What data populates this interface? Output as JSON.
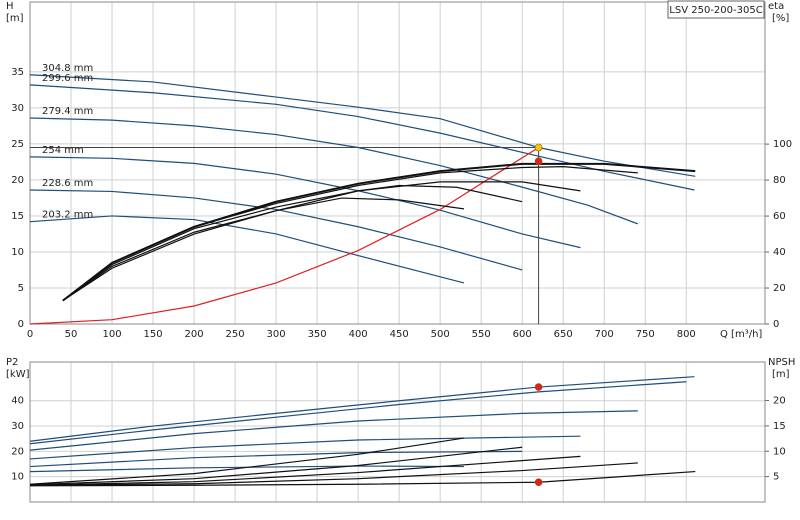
{
  "chart_data": [
    {
      "type": "line",
      "ylabel": "H",
      "yunit": "[m]",
      "y2label": "eta",
      "y2unit": "[%]",
      "xlabel": "Q [m³/h]",
      "annotation": "LSV 250-200-305C",
      "xlim": [
        0,
        896
      ],
      "xticks": [
        0,
        50,
        100,
        150,
        200,
        250,
        300,
        350,
        400,
        450,
        500,
        550,
        600,
        650,
        700,
        750,
        800
      ],
      "ylim": [
        0,
        44.7
      ],
      "yticks": [
        0,
        5,
        10,
        15,
        20,
        25,
        30,
        35
      ],
      "y2lim": [
        0,
        179
      ],
      "y2ticks": [
        0,
        20,
        40,
        60,
        80,
        100
      ],
      "grid": true,
      "series": [
        {
          "name": "304.8 mm",
          "color": "#1f4e79",
          "x": [
            0,
            150,
            300,
            400,
            500,
            620,
            700,
            811
          ],
          "values": [
            34.6,
            33.6,
            31.5,
            30.1,
            28.5,
            24.5,
            22.6,
            20.5
          ]
        },
        {
          "name": "299.6 mm",
          "color": "#1f4e79",
          "x": [
            0,
            150,
            300,
            400,
            500,
            620,
            700,
            810
          ],
          "values": [
            33.2,
            32.1,
            30.5,
            28.8,
            26.5,
            23.3,
            21.2,
            18.6
          ]
        },
        {
          "name": "279.4 mm",
          "color": "#1f4e79",
          "x": [
            0,
            100,
            200,
            300,
            400,
            500,
            600,
            680,
            741
          ],
          "values": [
            28.6,
            28.3,
            27.5,
            26.3,
            24.5,
            22.0,
            19.0,
            16.5,
            13.9
          ]
        },
        {
          "name": "254 mm",
          "color": "#1f4e79",
          "x": [
            0,
            100,
            200,
            300,
            400,
            500,
            600,
            671
          ],
          "values": [
            23.2,
            23.0,
            22.3,
            20.8,
            18.5,
            15.8,
            12.5,
            10.6
          ]
        },
        {
          "name": "228.6 mm",
          "color": "#1f4e79",
          "x": [
            0,
            100,
            200,
            300,
            400,
            500,
            600
          ],
          "values": [
            18.6,
            18.4,
            17.5,
            15.9,
            13.5,
            10.7,
            7.5
          ]
        },
        {
          "name": "203.2 mm",
          "color": "#1f4e79",
          "x": [
            0,
            100,
            200,
            300,
            400,
            529
          ],
          "values": [
            14.2,
            15.0,
            14.5,
            12.5,
            9.5,
            5.7
          ]
        },
        {
          "color": "#e02020",
          "x": [
            0,
            100,
            200,
            300,
            400,
            500,
            620
          ],
          "values": [
            0,
            0.6,
            2.5,
            5.7,
            10.2,
            15.9,
            24.5
          ]
        },
        {
          "color": "#111111",
          "axis": "y2",
          "x": [
            40,
            100,
            200,
            300,
            400,
            500,
            600,
            700,
            811
          ],
          "values": [
            13,
            34,
            54,
            68,
            78,
            85,
            89,
            89,
            85
          ]
        },
        {
          "color": "#111111",
          "axis": "y2",
          "x": [
            40,
            100,
            200,
            300,
            400,
            500,
            600,
            650,
            741
          ],
          "values": [
            13,
            34,
            54,
            67,
            77,
            84,
            87,
            87.5,
            84
          ]
        },
        {
          "color": "#111111",
          "axis": "y2",
          "x": [
            40,
            100,
            200,
            300,
            400,
            500,
            600,
            671
          ],
          "values": [
            13,
            33,
            53,
            65,
            74,
            79,
            79,
            74
          ]
        },
        {
          "color": "#111111",
          "axis": "y2",
          "x": [
            40,
            100,
            200,
            300,
            400,
            450,
            520,
            600
          ],
          "values": [
            13,
            32,
            51,
            63,
            74,
            77,
            76,
            68
          ]
        },
        {
          "color": "#111111",
          "axis": "y2",
          "x": [
            40,
            100,
            200,
            300,
            380,
            450,
            529
          ],
          "values": [
            13,
            31,
            50,
            63,
            70,
            69,
            64
          ]
        }
      ],
      "points": [
        {
          "x": 620,
          "y": 24.5,
          "color": "#f5c518"
        },
        {
          "x": 620,
          "y": 90.5,
          "axis": "y2",
          "color": "#e02020"
        }
      ]
    },
    {
      "type": "line",
      "ylabel": "P2",
      "yunit": "[kW]",
      "y2label": "NPSH",
      "y2unit": "[m]",
      "xlim": [
        0,
        896
      ],
      "xticks": [
        0,
        50,
        100,
        150,
        200,
        250,
        300,
        350,
        400,
        450,
        500,
        550,
        600,
        650,
        700,
        750,
        800
      ],
      "ylim": [
        0,
        55.3
      ],
      "yticks": [
        10,
        20,
        30,
        40
      ],
      "y2lim": [
        0,
        27.6
      ],
      "y2ticks": [
        5,
        10,
        15,
        20
      ],
      "grid": true,
      "series": [
        {
          "color": "#1f4e79",
          "x": [
            0,
            150,
            300,
            450,
            620,
            810
          ],
          "values": [
            24,
            30,
            35,
            40,
            45.4,
            49.5
          ]
        },
        {
          "color": "#1f4e79",
          "x": [
            0,
            150,
            300,
            450,
            620,
            800
          ],
          "values": [
            23,
            28.5,
            33.5,
            38.5,
            43.5,
            47.5
          ]
        },
        {
          "color": "#1f4e79",
          "x": [
            0,
            200,
            400,
            600,
            741
          ],
          "values": [
            20.5,
            27,
            32,
            35,
            36
          ]
        },
        {
          "color": "#1f4e79",
          "x": [
            0,
            200,
            400,
            671
          ],
          "values": [
            17,
            21.5,
            24.5,
            26
          ]
        },
        {
          "color": "#1f4e79",
          "x": [
            0,
            200,
            400,
            600
          ],
          "values": [
            14,
            17.5,
            19.5,
            20
          ]
        },
        {
          "color": "#1f4e79",
          "x": [
            0,
            200,
            400,
            529
          ],
          "values": [
            12,
            13.5,
            14.2,
            14
          ]
        },
        {
          "color": "#111111",
          "axis": "y2",
          "x": [
            0,
            200,
            400,
            620,
            811
          ],
          "values": [
            3.2,
            3.3,
            3.5,
            3.9,
            6
          ]
        },
        {
          "color": "#111111",
          "axis": "y2",
          "x": [
            0,
            200,
            400,
            600,
            741
          ],
          "values": [
            3.3,
            3.6,
            4.6,
            6.2,
            7.7
          ]
        },
        {
          "color": "#111111",
          "axis": "y2",
          "x": [
            0,
            200,
            400,
            671
          ],
          "values": [
            3.3,
            4,
            5.8,
            9
          ]
        },
        {
          "color": "#111111",
          "axis": "y2",
          "x": [
            0,
            200,
            400,
            600
          ],
          "values": [
            3.4,
            4.6,
            7.2,
            10.8
          ]
        },
        {
          "color": "#111111",
          "axis": "y2",
          "x": [
            0,
            200,
            400,
            529
          ],
          "values": [
            3.5,
            5.6,
            9.4,
            12.6
          ]
        }
      ],
      "points": [
        {
          "x": 620,
          "y": 45.4,
          "color": "#e02020"
        },
        {
          "x": 620,
          "y": 3.9,
          "axis": "y2",
          "color": "#e02020"
        }
      ]
    }
  ]
}
